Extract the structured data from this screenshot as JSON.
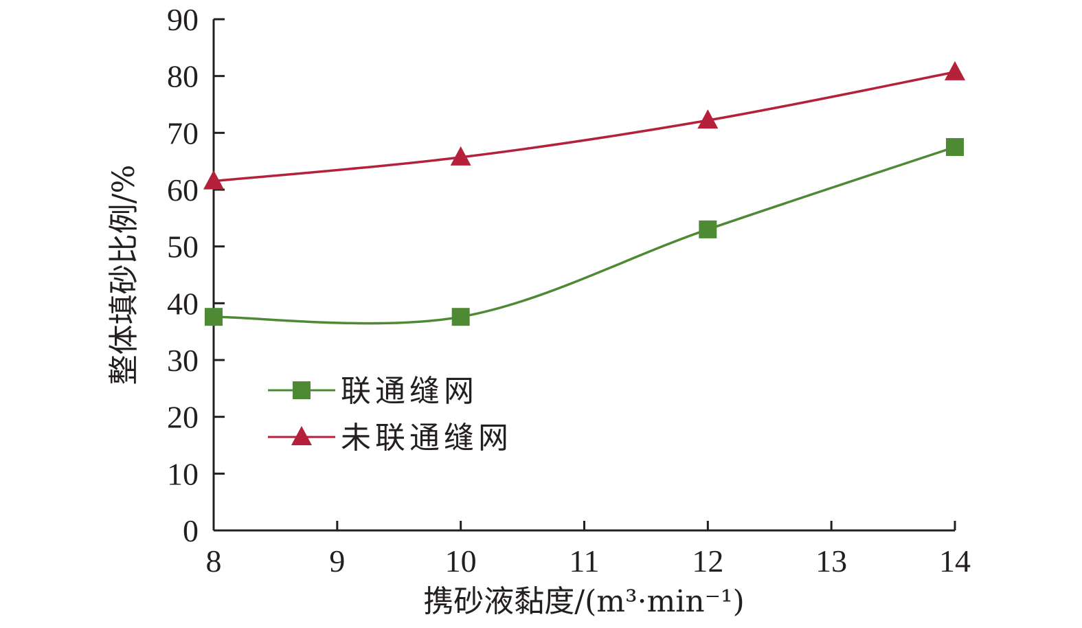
{
  "chart_data": {
    "type": "line",
    "title": "",
    "xlabel": "携砂液黏度/(m³·min⁻¹)",
    "ylabel": "整体填砂比例/%",
    "xlim": [
      8,
      14
    ],
    "ylim": [
      0,
      90
    ],
    "x_ticks": [
      "8",
      "9",
      "10",
      "11",
      "12",
      "13",
      "14"
    ],
    "y_ticks": [
      "0",
      "10",
      "20",
      "30",
      "40",
      "50",
      "60",
      "70",
      "80",
      "90"
    ],
    "grid": false,
    "legend_position": "center-left",
    "x": [
      8,
      10,
      12,
      14
    ],
    "series": [
      {
        "name": "联通缝网",
        "marker": "square",
        "color": "#4e8a34",
        "values": [
          37.6,
          37.6,
          53,
          67.5
        ]
      },
      {
        "name": "未联通缝网",
        "marker": "triangle",
        "color": "#b5203b",
        "values": [
          61.5,
          65.7,
          72.2,
          80.7
        ]
      }
    ]
  }
}
